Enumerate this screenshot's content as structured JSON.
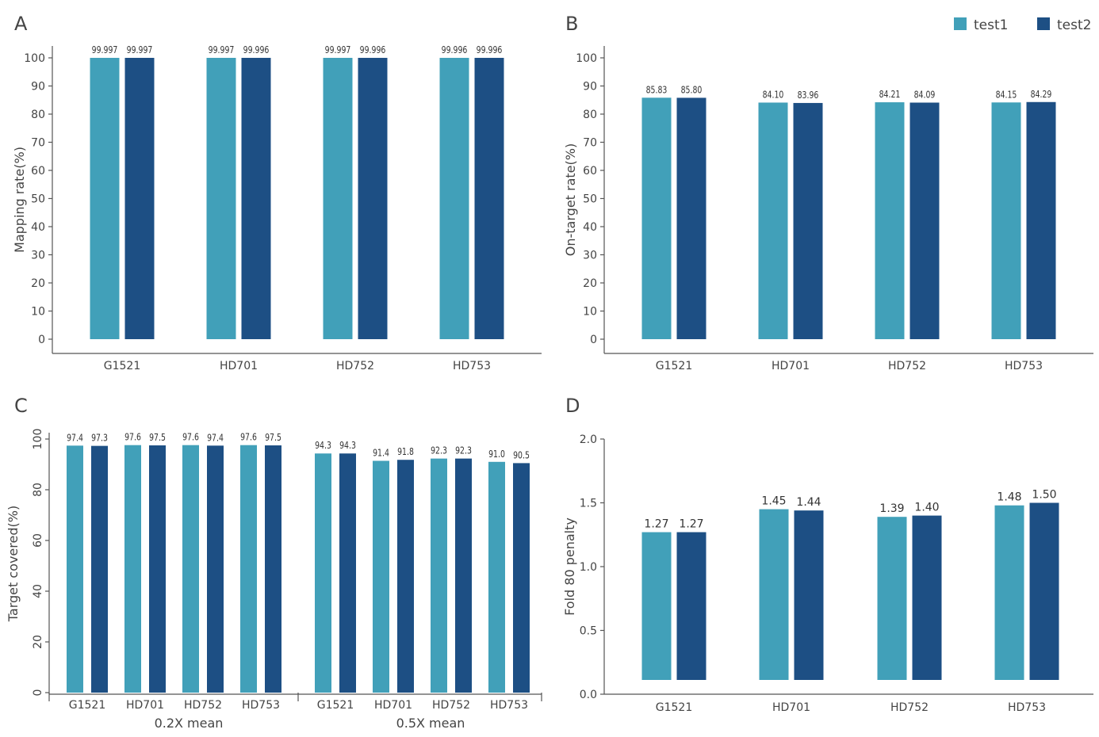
{
  "colors": {
    "test1": "#41a0b9",
    "test2": "#1d4f84"
  },
  "legend": {
    "entries": [
      {
        "label": "test1",
        "color": "#41a0b9"
      },
      {
        "label": "test2",
        "color": "#1d4f84"
      }
    ],
    "placement": "top-right"
  },
  "chart_data": [
    {
      "panel": "A",
      "type": "bar",
      "categories": [
        "G1521",
        "HD701",
        "HD752",
        "HD753"
      ],
      "series": [
        {
          "name": "test1",
          "values": [
            99.997,
            99.997,
            99.997,
            99.996
          ],
          "labels": [
            "99.997",
            "99.997",
            "99.997",
            "99.996"
          ]
        },
        {
          "name": "test2",
          "values": [
            99.997,
            99.996,
            99.996,
            99.996
          ],
          "labels": [
            "99.997",
            "99.996",
            "99.996",
            "99.996"
          ]
        }
      ],
      "ylabel": "Mapping rate(%)",
      "ylim": [
        0,
        100
      ],
      "yticks": [
        "0",
        "10",
        "20",
        "30",
        "40",
        "50",
        "60",
        "70",
        "80",
        "90",
        "100"
      ]
    },
    {
      "panel": "B",
      "type": "bar",
      "categories": [
        "G1521",
        "HD701",
        "HD752",
        "HD753"
      ],
      "series": [
        {
          "name": "test1",
          "values": [
            85.83,
            84.1,
            84.21,
            84.15
          ],
          "labels": [
            "85.83",
            "84.10",
            "84.21",
            "84.15"
          ]
        },
        {
          "name": "test2",
          "values": [
            85.8,
            83.96,
            84.09,
            84.29
          ],
          "labels": [
            "85.80",
            "83.96",
            "84.09",
            "84.29"
          ]
        }
      ],
      "ylabel": "On-target rate(%)",
      "ylim": [
        0,
        100
      ],
      "yticks": [
        "0",
        "10",
        "20",
        "30",
        "40",
        "50",
        "60",
        "70",
        "80",
        "90",
        "100"
      ]
    },
    {
      "panel": "C",
      "type": "bar",
      "groups": [
        {
          "name": "0.2X mean",
          "categories": [
            "G1521",
            "HD701",
            "HD752",
            "HD753"
          ],
          "series": [
            {
              "name": "test1",
              "values": [
                97.4,
                97.6,
                97.6,
                97.6
              ],
              "labels": [
                "97.4",
                "97.6",
                "97.6",
                "97.6"
              ]
            },
            {
              "name": "test2",
              "values": [
                97.3,
                97.5,
                97.4,
                97.5
              ],
              "labels": [
                "97.3",
                "97.5",
                "97.4",
                "97.5"
              ]
            }
          ]
        },
        {
          "name": "0.5X mean",
          "categories": [
            "G1521",
            "HD701",
            "HD752",
            "HD753"
          ],
          "series": [
            {
              "name": "test1",
              "values": [
                94.3,
                91.4,
                92.3,
                91.0
              ],
              "labels": [
                "94.3",
                "91.4",
                "92.3",
                "91.0"
              ]
            },
            {
              "name": "test2",
              "values": [
                94.3,
                91.8,
                92.3,
                90.5
              ],
              "labels": [
                "94.3",
                "91.8",
                "92.3",
                "90.5"
              ]
            }
          ]
        }
      ],
      "ylabel": "Target covered(%)",
      "ylim": [
        0,
        100
      ],
      "yticks": [
        "0",
        "20",
        "40",
        "60",
        "80",
        "100"
      ]
    },
    {
      "panel": "D",
      "type": "bar",
      "categories": [
        "G1521",
        "HD701",
        "HD752",
        "HD753"
      ],
      "series": [
        {
          "name": "test1",
          "values": [
            1.27,
            1.45,
            1.39,
            1.48
          ],
          "labels": [
            "1.27",
            "1.45",
            "1.39",
            "1.48"
          ]
        },
        {
          "name": "test2",
          "values": [
            1.27,
            1.44,
            1.4,
            1.5
          ],
          "labels": [
            "1.27",
            "1.44",
            "1.40",
            "1.50"
          ]
        }
      ],
      "ylabel": "Fold 80 penalty",
      "ylim": [
        0,
        2.0
      ],
      "yticks": [
        "0.0",
        "0.5",
        "1.0",
        "1.5",
        "2.0"
      ]
    }
  ]
}
